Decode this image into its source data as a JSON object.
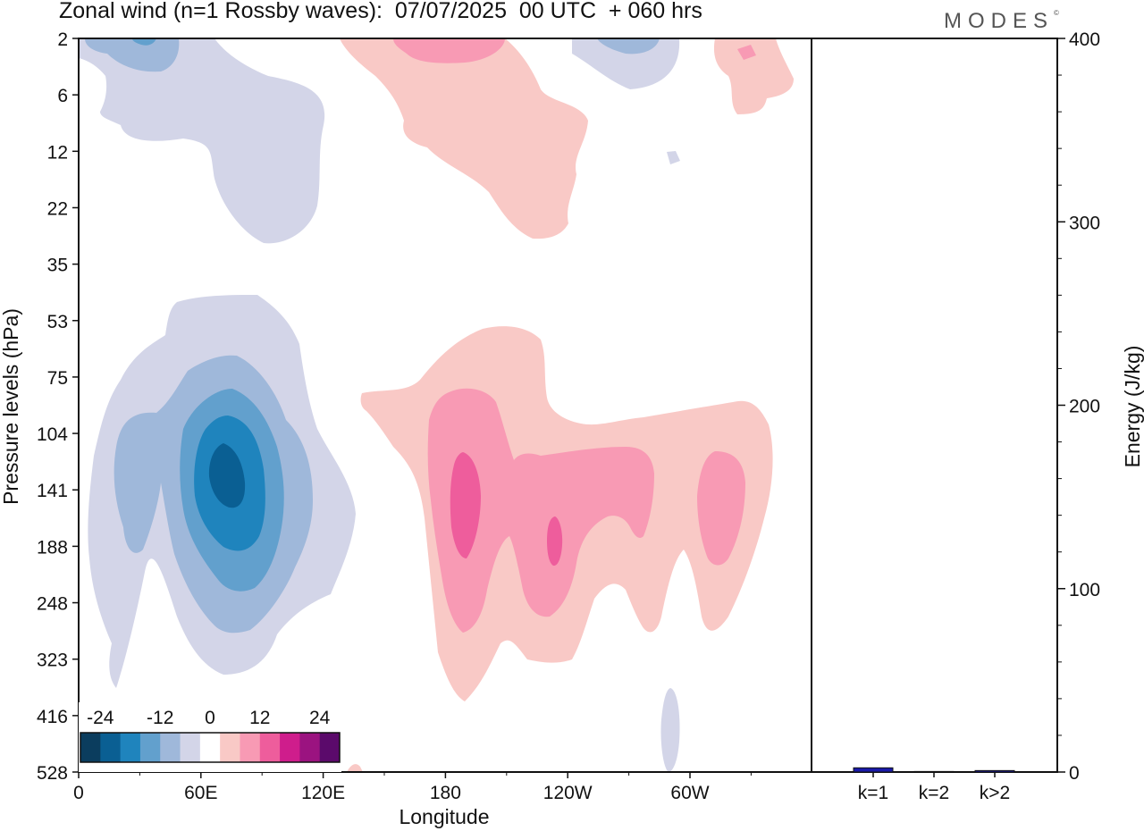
{
  "header": {
    "title": "Zonal wind (n=1 Rossby waves):  07/07/2025  00 UTC  + 060 hrs",
    "brand": "MODES",
    "brand_mark": "©"
  },
  "chart_data": [
    {
      "type": "heatmap",
      "title": "Zonal wind (n=1 Rossby waves):  07/07/2025  00 UTC  + 060 hrs",
      "xlabel": "Longitude",
      "ylabel": "Pressure levels (hPa)",
      "x_ticks": [
        "0",
        "60E",
        "120E",
        "180",
        "120W",
        "60W"
      ],
      "y_ticks": [
        "2",
        "6",
        "12",
        "22",
        "35",
        "53",
        "75",
        "104",
        "141",
        "188",
        "248",
        "323",
        "416",
        "528"
      ],
      "y_order": "top-to-bottom",
      "colorbar": {
        "labels": [
          "-24",
          "-12",
          "0",
          "12",
          "24"
        ],
        "colors": [
          "#0b3d5e",
          "#0a5f93",
          "#1f84bd",
          "#62a0cd",
          "#9fb8da",
          "#d3d5e8",
          "#ffffff",
          "#f9c9c6",
          "#f89ab4",
          "#ee5d9c",
          "#cf1d8c",
          "#9b1380",
          "#5b0a6b"
        ]
      },
      "regions": [
        {
          "name": "upper-west-negative",
          "sign": "negative",
          "peak": -8,
          "lon_range": [
            "0",
            "120E"
          ],
          "levels": [
            "2",
            "22"
          ]
        },
        {
          "name": "upper-central-positive",
          "sign": "positive",
          "peak": 8,
          "lon_range": [
            "120E",
            "120W"
          ],
          "levels": [
            "2",
            "22"
          ]
        },
        {
          "name": "lower-west-negative",
          "sign": "negative",
          "peak": -20,
          "lon_range": [
            "0",
            "135E"
          ],
          "levels": [
            "53",
            "323"
          ]
        },
        {
          "name": "lower-central-positive",
          "sign": "positive",
          "peak": 14,
          "lon_range": [
            "140E",
            "40W"
          ],
          "levels": [
            "75",
            "416"
          ]
        }
      ]
    },
    {
      "type": "bar",
      "categories": [
        "k=1",
        "k=2",
        "k>2"
      ],
      "values": [
        2.3,
        0.3,
        0.8
      ],
      "ylabel": "Energy (J/kg)",
      "ylim": [
        0,
        400
      ],
      "y_ticks": [
        "0",
        "100",
        "200",
        "300",
        "400"
      ],
      "bar_color": "#1a1aaa"
    }
  ]
}
